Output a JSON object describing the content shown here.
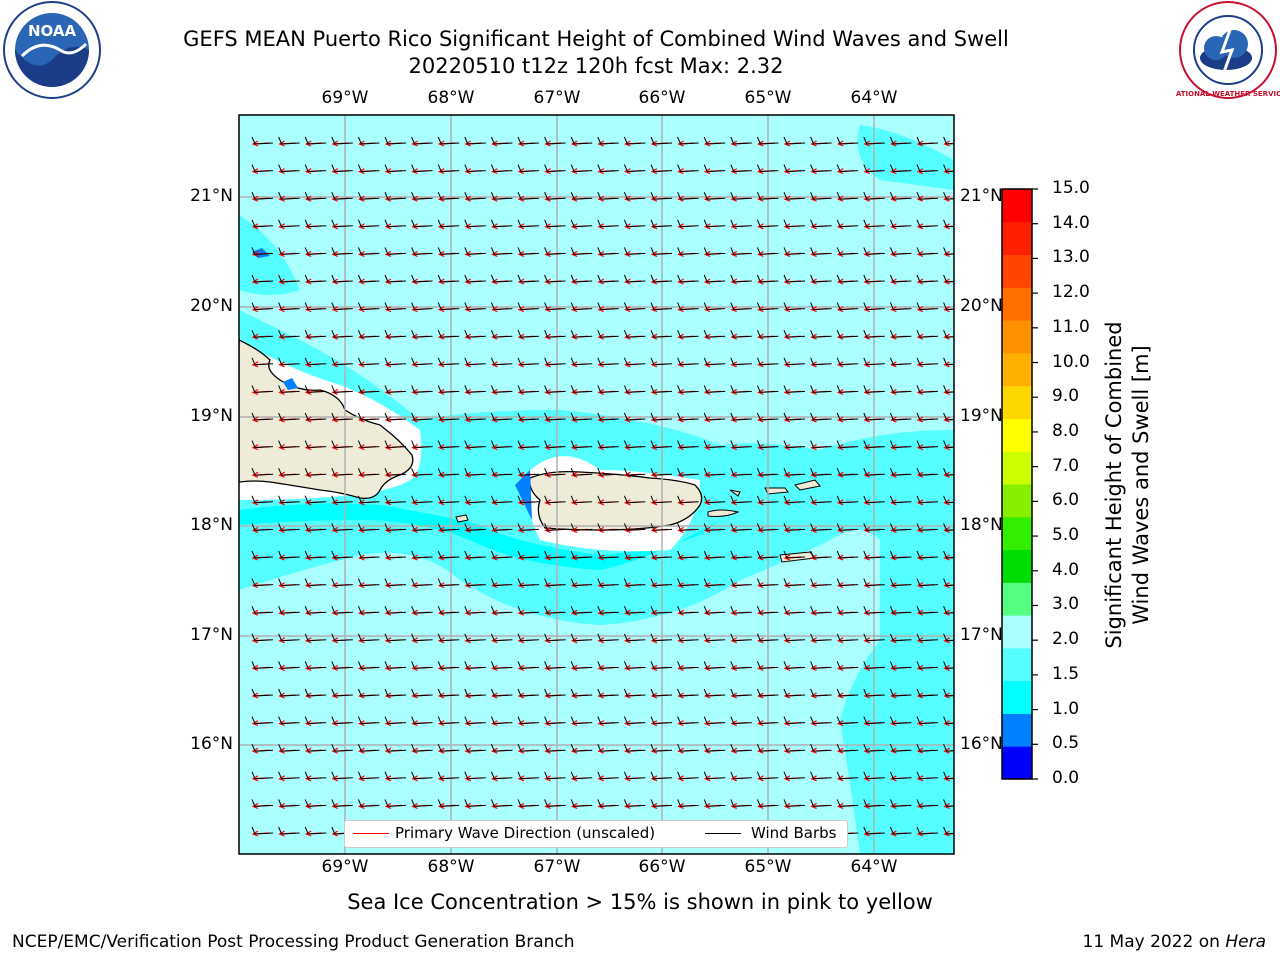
{
  "title": {
    "line1": "GEFS MEAN Puerto Rico Significant Height of Combined Wind Waves and Swell",
    "line2": "20220510 t12z 120h fcst   Max: 2.32"
  },
  "logos": {
    "left": {
      "name": "noaa-logo",
      "text": "NOAA"
    },
    "right": {
      "name": "nws-logo",
      "text": "NATIONAL WEATHER SERVICE"
    }
  },
  "map": {
    "lon_ticks": [
      "69°W",
      "68°W",
      "67°W",
      "66°W",
      "65°W",
      "64°W"
    ],
    "lat_ticks": [
      "21°N",
      "20°N",
      "19°N",
      "18°N",
      "17°N",
      "16°N"
    ],
    "colors": {
      "ocean_light": "#aaffff",
      "ocean_mid": "#55ffff",
      "ocean_cyan": "#00ffff",
      "land": "#eeebd9",
      "wave_arrow": "#ff0000"
    }
  },
  "legend": {
    "primary_wave": "Primary Wave Direction (unscaled)",
    "wind_barbs": "Wind Barbs"
  },
  "colorbar": {
    "label_line1": "Significant Height of Combined",
    "label_line2": "Wind Waves and Swell [m]",
    "ticks": [
      "15.0",
      "14.0",
      "13.0",
      "12.0",
      "11.0",
      "10.0",
      "9.0",
      "8.0",
      "7.0",
      "6.0",
      "5.0",
      "4.0",
      "3.0",
      "2.0",
      "1.5",
      "1.0",
      "0.5",
      "0.0"
    ],
    "colors": [
      "#0000ff",
      "#0080ff",
      "#00ffff",
      "#55ffff",
      "#aaffff",
      "#55ff80",
      "#00dd00",
      "#33ee00",
      "#88ee00",
      "#ccff00",
      "#ffff00",
      "#ffd700",
      "#ffb000",
      "#ff9000",
      "#ff7000",
      "#ff4500",
      "#ff2000",
      "#ff0000"
    ]
  },
  "sea_ice_note": "Sea Ice Concentration > 15% is shown in pink to yellow",
  "footer": {
    "left": "NCEP/EMC/Verification Post Processing Product Generation Branch",
    "right_prefix": "11 May 2022 on ",
    "right_host": "Hera"
  }
}
